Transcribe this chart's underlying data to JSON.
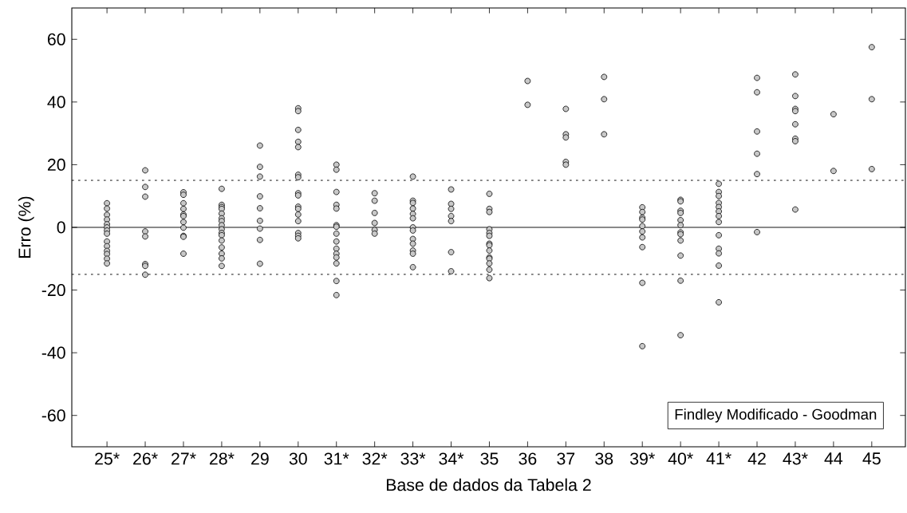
{
  "chart_data": {
    "type": "scatter",
    "xlabel": "Base de dados da Tabela 2",
    "ylabel": "Erro (%)",
    "categories": [
      "25*",
      "26*",
      "27*",
      "28*",
      "29",
      "30",
      "31*",
      "32*",
      "33*",
      "34*",
      "35",
      "36",
      "37",
      "38",
      "39*",
      "40*",
      "41*",
      "42",
      "43*",
      "44",
      "45"
    ],
    "ylim": [
      -70,
      70
    ],
    "yticks": [
      -60,
      -40,
      -20,
      0,
      20,
      40,
      60
    ],
    "grid": false,
    "marker": "circle",
    "ref_lines": [
      {
        "axis": "y",
        "value": 15,
        "line_style": "dotted",
        "color": "#000000"
      },
      {
        "axis": "y",
        "value": -15,
        "line_style": "dotted",
        "color": "#000000"
      },
      {
        "axis": "y",
        "value": 0,
        "line_style": "solid",
        "color": "#000000"
      }
    ],
    "annotations": [
      "Findley Modificado - Goodman"
    ],
    "series": [
      {
        "color": "#c8c8c8",
        "x": [
          "25*",
          "25*",
          "25*",
          "25*",
          "25*",
          "25*",
          "25*",
          "25*",
          "25*",
          "25*",
          "25*",
          "25*",
          "25*",
          "25*",
          "26*",
          "26*",
          "26*",
          "26*",
          "26*",
          "26*",
          "26*",
          "26*",
          "27*",
          "27*",
          "27*",
          "27*",
          "27*",
          "27*",
          "27*",
          "27*",
          "27*",
          "27*",
          "27*",
          "28*",
          "28*",
          "28*",
          "28*",
          "28*",
          "28*",
          "28*",
          "28*",
          "28*",
          "28*",
          "28*",
          "28*",
          "28*",
          "28*",
          "28*",
          "28*",
          "29",
          "29",
          "29",
          "29",
          "29",
          "29",
          "29",
          "29",
          "29",
          "30",
          "30",
          "30",
          "30",
          "30",
          "30",
          "30",
          "30",
          "30",
          "30",
          "30",
          "30",
          "30",
          "30",
          "30",
          "30",
          "31*",
          "31*",
          "31*",
          "31*",
          "31*",
          "31*",
          "31*",
          "31*",
          "31*",
          "31*",
          "31*",
          "31*",
          "31*",
          "31*",
          "31*",
          "32*",
          "32*",
          "32*",
          "32*",
          "32*",
          "32*",
          "33*",
          "33*",
          "33*",
          "33*",
          "33*",
          "33*",
          "33*",
          "33*",
          "33*",
          "33*",
          "33*",
          "33*",
          "33*",
          "34*",
          "34*",
          "34*",
          "34*",
          "34*",
          "34*",
          "34*",
          "35",
          "35",
          "35",
          "35",
          "35",
          "35",
          "35",
          "35",
          "35",
          "35",
          "35",
          "35",
          "35",
          "35",
          "36",
          "36",
          "37",
          "37",
          "37",
          "37",
          "37",
          "38",
          "38",
          "38",
          "39*",
          "39*",
          "39*",
          "39*",
          "39*",
          "39*",
          "39*",
          "39*",
          "39*",
          "39*",
          "40*",
          "40*",
          "40*",
          "40*",
          "40*",
          "40*",
          "40*",
          "40*",
          "40*",
          "40*",
          "40*",
          "40*",
          "41*",
          "41*",
          "41*",
          "41*",
          "41*",
          "41*",
          "41*",
          "41*",
          "41*",
          "41*",
          "41*",
          "41*",
          "41*",
          "42",
          "42",
          "42",
          "42",
          "42",
          "42",
          "43*",
          "43*",
          "43*",
          "43*",
          "43*",
          "43*",
          "43*",
          "43*",
          "44",
          "44",
          "45",
          "45",
          "45"
        ],
        "values": [
          7.7,
          6,
          4,
          2.5,
          1,
          0,
          -1,
          -2,
          -4.5,
          -6,
          -7.5,
          -8.5,
          -10,
          -11.5,
          18.2,
          12.9,
          9.8,
          -1.3,
          -2.9,
          -11.7,
          -12.3,
          -15.1,
          11.2,
          10.4,
          7.7,
          5.9,
          4.1,
          3.6,
          1.7,
          -0.1,
          -2.7,
          -3,
          -8.4,
          12.3,
          7.2,
          6.5,
          5.9,
          4.4,
          2.9,
          2,
          0.7,
          -0.6,
          -1.8,
          -2.5,
          -4.2,
          -6.4,
          -8.4,
          -9.9,
          -12.3,
          26.1,
          19.3,
          16.2,
          9.9,
          6.1,
          2.1,
          -0.4,
          -4,
          -11.6,
          38,
          37.1,
          31.1,
          27.3,
          25.6,
          16.8,
          16,
          10.9,
          10.2,
          6.6,
          5.9,
          4.1,
          2,
          -1.8,
          -2.7,
          -3.5,
          20,
          18.4,
          11.3,
          7.2,
          6,
          0.7,
          0.2,
          -2,
          -4.5,
          -6.8,
          -8.4,
          -9.6,
          -11.5,
          -17.1,
          -21.6,
          10.9,
          8.5,
          4.6,
          1.4,
          -0.8,
          -2,
          16.2,
          8.5,
          7.8,
          6,
          4.3,
          2.9,
          0,
          -1,
          -3.7,
          -5.2,
          -7.4,
          -8.4,
          -12.7,
          12.1,
          7.5,
          5.9,
          3.6,
          2,
          -7.9,
          -14,
          10.7,
          5.9,
          4.9,
          -0.6,
          -1.8,
          -2.7,
          -5.2,
          -5.7,
          -7.4,
          -9.6,
          -10,
          -11.5,
          -13.5,
          -16.2,
          46.7,
          39.1,
          37.8,
          29.7,
          28.7,
          20.9,
          20,
          48,
          40.9,
          29.7,
          6.4,
          4.9,
          3.1,
          2.5,
          0.4,
          -1.3,
          -3.2,
          -6.3,
          -17.7,
          -37.9,
          8.8,
          8.3,
          5.3,
          4.6,
          2.3,
          0.7,
          -1.6,
          -2.2,
          -4.2,
          -9,
          -17,
          -34.4,
          13.9,
          11.3,
          10,
          7.8,
          6.5,
          5.1,
          3.6,
          1.7,
          -2.5,
          -6.8,
          -8.3,
          -12.2,
          -23.9,
          47.7,
          43.1,
          30.6,
          23.5,
          17,
          -1.5,
          48.8,
          41.9,
          37.8,
          37.1,
          32.9,
          28.3,
          27.5,
          5.7,
          36.1,
          18,
          57.5,
          40.9,
          18.6
        ]
      }
    ]
  }
}
